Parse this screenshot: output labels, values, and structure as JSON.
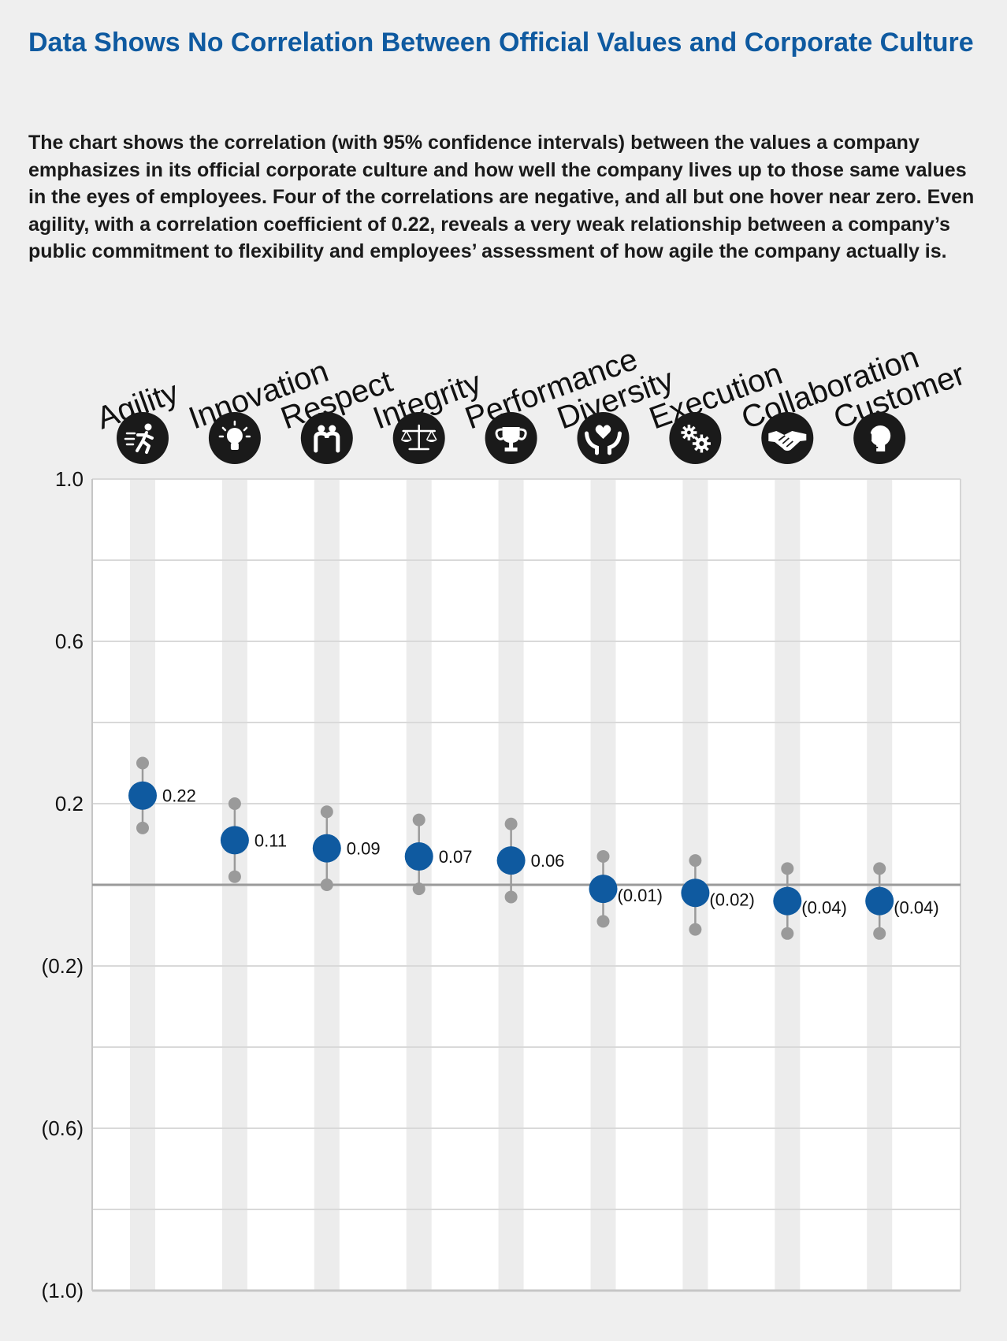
{
  "header": {
    "title": "Data Shows No Correlation Between Official Values and Corporate Culture",
    "description": "The chart shows the correlation (with 95% confidence intervals) between the values a company emphasizes in its official corporate culture and how well the company lives up to those same values in the eyes of employees. Four of the correlations are negative, and all but one hover near zero. Even agility, with a correlation coefficient of 0.22, reveals a very weak relationship between a company’s public commitment to flexibility and employees’ assessment of how agile the company actually is."
  },
  "colors": {
    "title": "#0f5aa0",
    "point": "#0f5aa0",
    "ci": "#9a9a9a",
    "icon_bg": "#1a1a1a",
    "background": "#efefef"
  },
  "chart_data": {
    "type": "scatter",
    "title": "",
    "xlabel": "",
    "ylabel": "",
    "ylim": [
      -1.0,
      1.0
    ],
    "yticks": [
      1.0,
      0.6,
      0.2,
      -0.2,
      -0.6,
      -1.0
    ],
    "ytick_labels": [
      "1.0",
      "0.6",
      "0.2",
      "(0.2)",
      "(0.6)",
      "(1.0)"
    ],
    "grid": true,
    "zero_line": true,
    "categories": [
      "Agility",
      "Innovation",
      "Respect",
      "Integrity",
      "Performance",
      "Diversity",
      "Execution",
      "Collaboration",
      "Customer"
    ],
    "icons": [
      "runner-icon",
      "lightbulb-icon",
      "people-icon",
      "scales-icon",
      "trophy-icon",
      "hands-heart-icon",
      "gears-icon",
      "handshake-icon",
      "headset-icon"
    ],
    "values": [
      0.22,
      0.11,
      0.09,
      0.07,
      0.06,
      -0.01,
      -0.02,
      -0.04,
      -0.04
    ],
    "value_labels": [
      "0.22",
      "0.11",
      "0.09",
      "0.07",
      "0.06",
      "(0.01)",
      "(0.02)",
      "(0.04)",
      "(0.04)"
    ],
    "ci_upper": [
      0.3,
      0.2,
      0.18,
      0.16,
      0.15,
      0.07,
      0.06,
      0.04,
      0.04
    ],
    "ci_lower": [
      0.14,
      0.02,
      0.0,
      -0.01,
      -0.03,
      -0.09,
      -0.11,
      -0.12,
      -0.12
    ]
  }
}
